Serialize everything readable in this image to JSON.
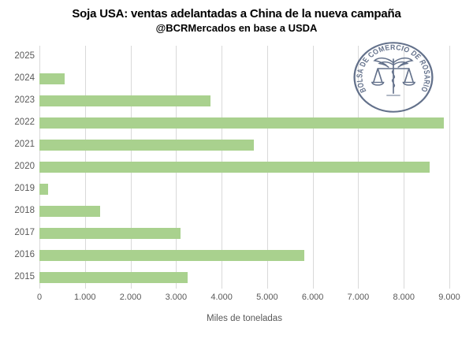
{
  "chart_data": {
    "type": "bar",
    "orientation": "horizontal",
    "title": "Soja USA: ventas adelantadas a China de la nueva campaña",
    "subtitle": "@BCRMercados en base a USDA",
    "categories": [
      "2025",
      "2024",
      "2023",
      "2022",
      "2021",
      "2020",
      "2019",
      "2018",
      "2017",
      "2016",
      "2015"
    ],
    "values": [
      0,
      560,
      3750,
      8880,
      4700,
      8560,
      190,
      1330,
      3100,
      5820,
      3250
    ],
    "xlabel": "Miles de toneladas",
    "xlim": [
      0,
      9000
    ],
    "xticks": [
      "0",
      "1.000",
      "2.000",
      "3.000",
      "4.000",
      "5.000",
      "6.000",
      "7.000",
      "8.000",
      "9.000"
    ],
    "grid": "vertical",
    "legend_position": "none",
    "bar_color": "#a9d18e",
    "gridline_color": "#d9d9d9",
    "axis_text_color": "#595959"
  },
  "watermark": {
    "text": "BOLSA DE COMERCIO DE ROSARIO",
    "color": "#53627f"
  }
}
